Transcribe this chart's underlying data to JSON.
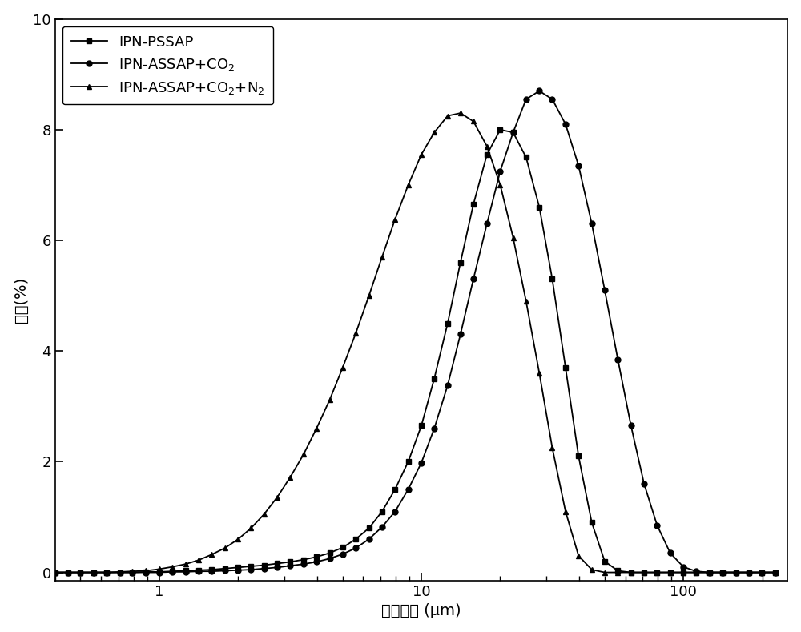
{
  "xlabel": "额粒尺寸 (μm)",
  "ylabel": "占比(%)",
  "xlim": [
    0.4,
    250
  ],
  "ylim": [
    -0.15,
    10
  ],
  "yticks": [
    0,
    2,
    4,
    6,
    8,
    10
  ],
  "background_color": "#ffffff",
  "series": [
    {
      "label": "IPN-PSSAP",
      "marker": "s",
      "color": "#000000",
      "x": [
        0.4,
        0.45,
        0.5,
        0.56,
        0.63,
        0.71,
        0.79,
        0.89,
        1.0,
        1.12,
        1.26,
        1.41,
        1.58,
        1.78,
        2.0,
        2.24,
        2.51,
        2.82,
        3.16,
        3.55,
        3.98,
        4.47,
        5.01,
        5.62,
        6.31,
        7.08,
        7.94,
        8.91,
        10.0,
        11.2,
        12.6,
        14.1,
        15.8,
        17.8,
        20.0,
        22.4,
        25.1,
        28.2,
        31.6,
        35.5,
        39.8,
        44.7,
        50.1,
        56.2,
        63.1,
        70.8,
        79.4,
        89.1,
        100.0,
        112.0,
        125.9,
        141.3,
        158.5,
        177.8,
        199.5,
        223.9
      ],
      "y": [
        0.0,
        0.0,
        0.0,
        0.0,
        0.0,
        0.0,
        0.0,
        0.01,
        0.01,
        0.02,
        0.03,
        0.04,
        0.05,
        0.07,
        0.09,
        0.11,
        0.13,
        0.16,
        0.19,
        0.23,
        0.28,
        0.35,
        0.45,
        0.6,
        0.8,
        1.1,
        1.5,
        2.0,
        2.65,
        3.5,
        4.5,
        5.6,
        6.65,
        7.55,
        8.0,
        7.95,
        7.5,
        6.6,
        5.3,
        3.7,
        2.1,
        0.9,
        0.2,
        0.03,
        0.0,
        0.0,
        0.0,
        0.0,
        0.0,
        0.0,
        0.0,
        0.0,
        0.0,
        0.0,
        0.0,
        0.0
      ]
    },
    {
      "label": "IPN-ASSAP+CO₂",
      "marker": "o",
      "color": "#000000",
      "x": [
        0.4,
        0.45,
        0.5,
        0.56,
        0.63,
        0.71,
        0.79,
        0.89,
        1.0,
        1.12,
        1.26,
        1.41,
        1.58,
        1.78,
        2.0,
        2.24,
        2.51,
        2.82,
        3.16,
        3.55,
        3.98,
        4.47,
        5.01,
        5.62,
        6.31,
        7.08,
        7.94,
        8.91,
        10.0,
        11.2,
        12.6,
        14.1,
        15.8,
        17.8,
        20.0,
        22.4,
        25.1,
        28.2,
        31.6,
        35.5,
        39.8,
        44.7,
        50.1,
        56.2,
        63.1,
        70.8,
        79.4,
        89.1,
        100.0,
        112.0,
        125.9,
        141.3,
        158.5,
        177.8,
        199.5,
        223.9
      ],
      "y": [
        0.0,
        0.0,
        0.0,
        0.0,
        0.0,
        0.0,
        0.0,
        0.0,
        0.0,
        0.01,
        0.01,
        0.02,
        0.02,
        0.03,
        0.04,
        0.05,
        0.07,
        0.09,
        0.12,
        0.15,
        0.19,
        0.25,
        0.33,
        0.44,
        0.6,
        0.82,
        1.1,
        1.5,
        1.98,
        2.6,
        3.38,
        4.3,
        5.3,
        6.3,
        7.25,
        7.95,
        8.55,
        8.7,
        8.55,
        8.1,
        7.35,
        6.3,
        5.1,
        3.85,
        2.65,
        1.6,
        0.85,
        0.35,
        0.1,
        0.02,
        0.0,
        0.0,
        0.0,
        0.0,
        0.0,
        0.0
      ]
    },
    {
      "label": "IPN-ASSAP+CO₂+N₂",
      "marker": "^",
      "color": "#000000",
      "x": [
        0.4,
        0.45,
        0.5,
        0.56,
        0.63,
        0.71,
        0.79,
        0.89,
        1.0,
        1.12,
        1.26,
        1.41,
        1.58,
        1.78,
        2.0,
        2.24,
        2.51,
        2.82,
        3.16,
        3.55,
        3.98,
        4.47,
        5.01,
        5.62,
        6.31,
        7.08,
        7.94,
        8.91,
        10.0,
        11.2,
        12.6,
        14.1,
        15.8,
        17.8,
        20.0,
        22.4,
        25.1,
        28.2,
        31.6,
        35.5,
        39.8,
        44.7,
        50.1,
        56.2,
        63.1,
        70.8,
        79.4,
        89.1,
        100.0,
        112.0,
        125.9,
        141.3,
        158.5,
        177.8,
        199.5,
        223.9
      ],
      "y": [
        0.0,
        0.0,
        0.0,
        0.0,
        0.0,
        0.01,
        0.02,
        0.03,
        0.06,
        0.1,
        0.15,
        0.22,
        0.32,
        0.44,
        0.6,
        0.8,
        1.05,
        1.36,
        1.72,
        2.13,
        2.6,
        3.12,
        3.7,
        4.32,
        5.0,
        5.7,
        6.38,
        7.0,
        7.55,
        7.95,
        8.25,
        8.3,
        8.15,
        7.7,
        7.0,
        6.05,
        4.9,
        3.6,
        2.25,
        1.1,
        0.3,
        0.05,
        0.0,
        0.0,
        0.0,
        0.0,
        0.0,
        0.0,
        0.0,
        0.0,
        0.0,
        0.0,
        0.0,
        0.0,
        0.0,
        0.0
      ]
    }
  ],
  "markersize": 5,
  "linewidth": 1.3,
  "legend_loc": "upper left",
  "legend_fontsize": 13,
  "axis_fontsize": 14,
  "tick_fontsize": 13
}
